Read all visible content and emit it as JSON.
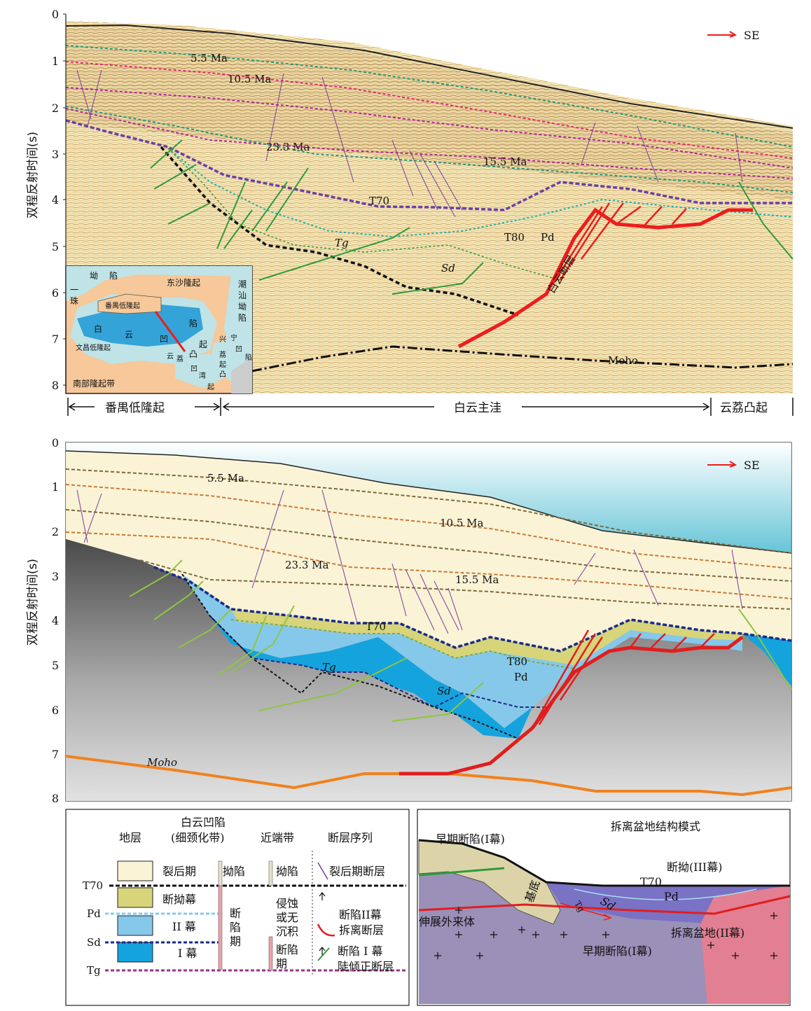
{
  "direction_label": "SE",
  "yaxis_label": "双程反射时间(s)",
  "yticks": [
    "0",
    "1",
    "2",
    "3",
    "4",
    "5",
    "6",
    "7",
    "8"
  ],
  "top_panel": {
    "horizon_labels": {
      "ma55": "5.5 Ma",
      "ma105": "10.5 Ma",
      "ma233": "23.3 Ma",
      "ma155": "15.5 Ma",
      "t70": "T70",
      "t80": "T80",
      "pd": "Pd",
      "tg": "Tg",
      "sd": "Sd",
      "moho": "Moho"
    },
    "fault_label": "白云断层",
    "zones": {
      "left": "番禺低隆起",
      "mid": "白云主洼",
      "right": "云荔凸起"
    },
    "inset_map": {
      "labels": [
        "坳",
        "陷",
        "一",
        "珠",
        "东沙隆起",
        "番禺低隆起",
        "潮",
        "汕",
        "坳",
        "陷",
        "白",
        "云",
        "凹",
        "陷",
        "起",
        "凸",
        "荔",
        "云",
        "兴",
        "宁",
        "凹",
        "陷",
        "凹",
        "湾",
        "荔",
        "起",
        "凸",
        "文昌低隆起",
        "南部隆起带",
        "起"
      ]
    }
  },
  "bottom_panel": {
    "horizon_labels": {
      "ma55": "5.5 Ma",
      "ma105": "10.5 Ma",
      "ma233": "23.3 Ma",
      "ma155": "15.5 Ma",
      "t70": "T70",
      "t80": "T80",
      "pd": "Pd",
      "tg": "Tg",
      "sd": "Sd",
      "moho": "Moho"
    }
  },
  "legend": {
    "col_headers": [
      "地层",
      "白云凹陷",
      "(细颈化带)",
      "近端带",
      "断层序列"
    ],
    "rows": [
      "裂后期",
      "断拗幕",
      "II 幕",
      "I 幕"
    ],
    "horizon_names": [
      "T70",
      "Pd",
      "Sd",
      "Tg"
    ],
    "baiyun_col": [
      "拗陷",
      "断",
      "陷",
      "期"
    ],
    "proximal_col": [
      "拗陷",
      "侵蚀",
      "或无",
      "沉积",
      "断陷",
      "期"
    ],
    "fault_items": [
      "裂后期断层",
      "断陷II幕",
      "拆离断层",
      "断陷 I 幕",
      "陡倾正断层"
    ],
    "colors": {
      "postrift": "#fbf3d6",
      "sag": "#d7d47a",
      "rift2": "#86c8ea",
      "rift1": "#15a3dd"
    }
  },
  "model": {
    "title": "拆离盆地结构模式",
    "labels": [
      "早期断陷(Ⅰ幕)",
      "断拗(III幕)",
      "T70",
      "Pd",
      "基底",
      "Tg",
      "Sd",
      "伸展外来体",
      "拆离盆地(II幕)",
      "早期断陷(Ⅰ幕)"
    ]
  }
}
